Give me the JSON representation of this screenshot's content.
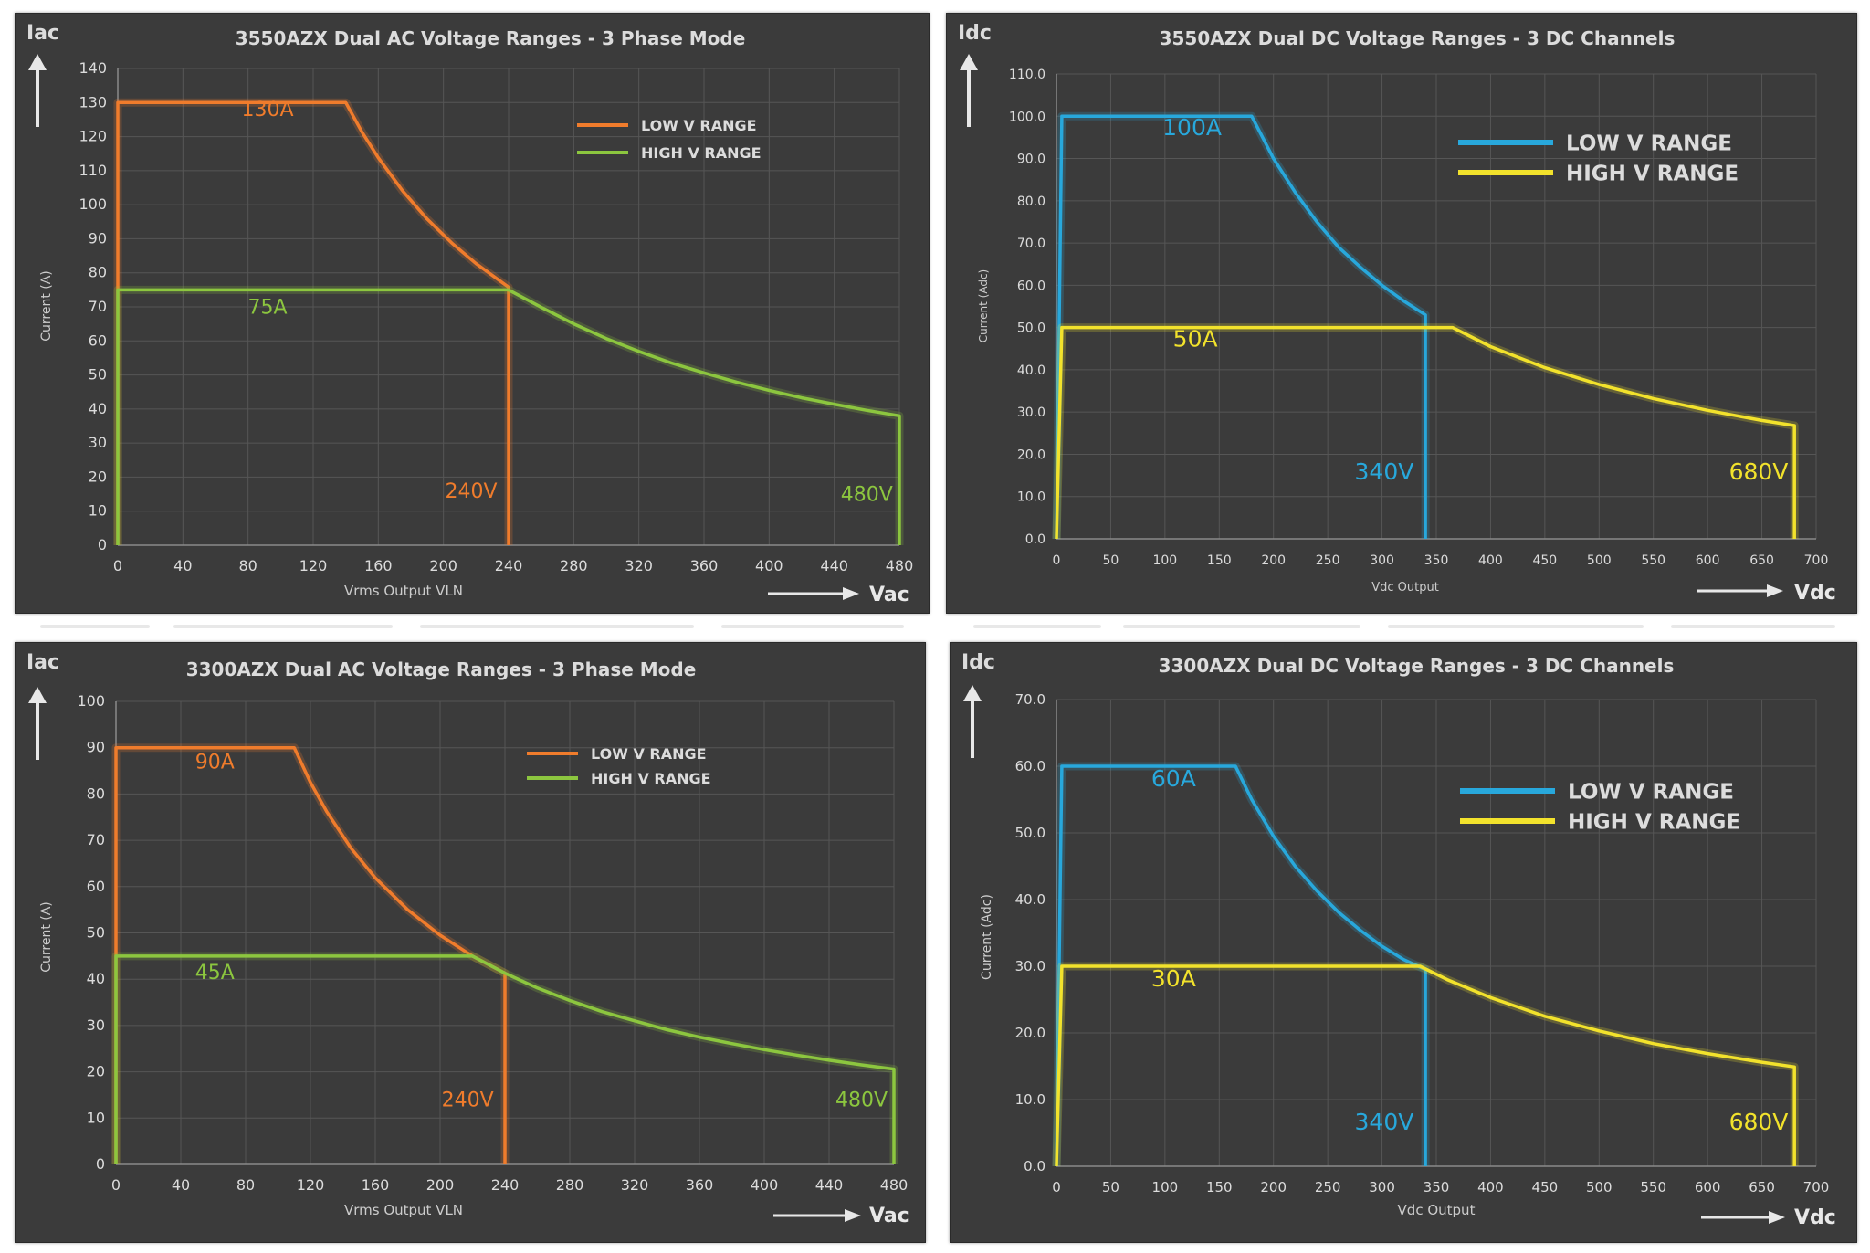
{
  "colors": {
    "panel_bg": "#3b3b3b",
    "grid": "#565656",
    "text": "#dcdcdc",
    "orange": "#f07c2c",
    "green": "#8cc63f",
    "blue": "#28a8dc",
    "yellow": "#f2e22c"
  },
  "chart_data": [
    {
      "type": "line",
      "title": "3550AZX Dual AC Voltage Ranges - 3 Phase Mode",
      "corner_label": "Iac",
      "arrow_label": "Vac",
      "xlabel": "Vrms Output VLN",
      "ylabel": "Current (A)",
      "xlim": [
        0,
        480
      ],
      "ylim": [
        0,
        140
      ],
      "xticks": [
        "0",
        "40",
        "80",
        "120",
        "160",
        "200",
        "240",
        "280",
        "320",
        "360",
        "400",
        "440",
        "480"
      ],
      "yticks": [
        "0",
        "10",
        "20",
        "30",
        "40",
        "50",
        "60",
        "70",
        "80",
        "90",
        "100",
        "110",
        "120",
        "130",
        "140"
      ],
      "legend_position": "top-right",
      "series": [
        {
          "name": "LOW V RANGE",
          "color": "orange",
          "x": [
            0,
            0,
            140,
            150,
            160,
            175,
            190,
            205,
            220,
            240,
            240
          ],
          "y": [
            0,
            130,
            130,
            121.3,
            113.8,
            104,
            95.8,
            88.8,
            82.7,
            75.8,
            0
          ]
        },
        {
          "name": "HIGH V RANGE",
          "color": "green",
          "x": [
            0,
            0,
            240,
            260,
            280,
            300,
            320,
            340,
            360,
            380,
            400,
            420,
            440,
            460,
            480,
            480
          ],
          "y": [
            0,
            75,
            75,
            69.9,
            65,
            60.7,
            56.9,
            53.5,
            50.6,
            47.9,
            45.5,
            43.3,
            41.4,
            39.6,
            38,
            0
          ]
        }
      ],
      "annotations": [
        {
          "text": "130A",
          "x": 92,
          "y": 126,
          "color": "orange"
        },
        {
          "text": "75A",
          "x": 92,
          "y": 68,
          "color": "green"
        },
        {
          "text": "240V",
          "x": 217,
          "y": 14,
          "color": "orange"
        },
        {
          "text": "480V",
          "x": 460,
          "y": 13,
          "color": "green"
        }
      ]
    },
    {
      "type": "line",
      "title": "3550AZX Dual DC Voltage Ranges - 3 DC Channels",
      "corner_label": "Idc",
      "arrow_label": "Vdc",
      "xlabel": "Vdc Output",
      "ylabel": "Current (Adc)",
      "xlim": [
        0,
        700
      ],
      "ylim": [
        0,
        110
      ],
      "xticks": [
        "0",
        "50",
        "100",
        "150",
        "200",
        "250",
        "300",
        "350",
        "400",
        "450",
        "500",
        "550",
        "600",
        "650",
        "700"
      ],
      "yticks": [
        "0.0",
        "10.0",
        "20.0",
        "30.0",
        "40.0",
        "50.0",
        "60.0",
        "70.0",
        "80.0",
        "90.0",
        "100.0",
        "110.0"
      ],
      "legend_position": "top-right",
      "series": [
        {
          "name": "LOW V RANGE",
          "color": "blue",
          "x": [
            0,
            5,
            180,
            190,
            200,
            220,
            240,
            260,
            280,
            300,
            320,
            340,
            340
          ],
          "y": [
            0,
            100,
            100,
            95,
            90,
            82,
            75,
            69,
            64.3,
            60,
            56.3,
            53,
            0
          ]
        },
        {
          "name": "HIGH V RANGE",
          "color": "yellow",
          "x": [
            0,
            5,
            365,
            400,
            450,
            500,
            550,
            600,
            650,
            680,
            680
          ],
          "y": [
            0,
            50,
            50,
            45.5,
            40.5,
            36.5,
            33.2,
            30.4,
            28,
            26.8,
            0
          ]
        }
      ],
      "annotations": [
        {
          "text": "100A",
          "x": 125,
          "y": 95.5,
          "color": "blue"
        },
        {
          "text": "50A",
          "x": 128,
          "y": 45.5,
          "color": "yellow"
        },
        {
          "text": "340V",
          "x": 302,
          "y": 14,
          "color": "blue"
        },
        {
          "text": "680V",
          "x": 647,
          "y": 14,
          "color": "yellow"
        }
      ]
    },
    {
      "type": "line",
      "title": "3300AZX Dual AC Voltage Ranges - 3 Phase Mode",
      "corner_label": "Iac",
      "arrow_label": "Vac",
      "xlabel": "Vrms Output VLN",
      "ylabel": "Current (A)",
      "xlim": [
        0,
        480
      ],
      "ylim": [
        0,
        100
      ],
      "xticks": [
        "0",
        "40",
        "80",
        "120",
        "160",
        "200",
        "240",
        "280",
        "320",
        "360",
        "400",
        "440",
        "480"
      ],
      "yticks": [
        "0",
        "10",
        "20",
        "30",
        "40",
        "50",
        "60",
        "70",
        "80",
        "90",
        "100"
      ],
      "legend_position": "top-right",
      "series": [
        {
          "name": "LOW V RANGE",
          "color": "orange",
          "x": [
            0,
            0,
            110,
            120,
            130,
            145,
            160,
            180,
            200,
            220,
            240,
            240
          ],
          "y": [
            0,
            90,
            90,
            82.5,
            76.2,
            68.3,
            61.9,
            55,
            49.5,
            45,
            41.3,
            0
          ]
        },
        {
          "name": "HIGH V RANGE",
          "color": "green",
          "x": [
            0,
            0,
            220,
            240,
            260,
            280,
            300,
            320,
            340,
            360,
            380,
            400,
            420,
            440,
            460,
            480,
            480
          ],
          "y": [
            0,
            45,
            45,
            41.3,
            38.1,
            35.4,
            33,
            31,
            29.1,
            27.5,
            26.1,
            24.8,
            23.6,
            22.5,
            21.5,
            20.6,
            0
          ]
        }
      ],
      "annotations": [
        {
          "text": "90A",
          "x": 61,
          "y": 85.5,
          "color": "orange"
        },
        {
          "text": "45A",
          "x": 61,
          "y": 40,
          "color": "green"
        },
        {
          "text": "240V",
          "x": 217,
          "y": 12.5,
          "color": "orange"
        },
        {
          "text": "480V",
          "x": 460,
          "y": 12.5,
          "color": "green"
        }
      ]
    },
    {
      "type": "line",
      "title": "3300AZX Dual DC Voltage Ranges - 3 DC Channels",
      "corner_label": "Idc",
      "arrow_label": "Vdc",
      "xlabel": "Vdc Output",
      "ylabel": "Current (Adc)",
      "xlim": [
        0,
        700
      ],
      "ylim": [
        0,
        70
      ],
      "xticks": [
        "0",
        "50",
        "100",
        "150",
        "200",
        "250",
        "300",
        "350",
        "400",
        "450",
        "500",
        "550",
        "600",
        "650",
        "700"
      ],
      "yticks": [
        "0.0",
        "10.0",
        "20.0",
        "30.0",
        "40.0",
        "50.0",
        "60.0",
        "70.0"
      ],
      "legend_position": "top-right",
      "series": [
        {
          "name": "LOW V RANGE",
          "color": "blue",
          "x": [
            0,
            5,
            165,
            180,
            200,
            220,
            240,
            260,
            280,
            300,
            320,
            340,
            340
          ],
          "y": [
            0,
            60,
            60,
            55,
            49.5,
            45,
            41.3,
            38.1,
            35.4,
            33,
            31,
            29.5,
            0
          ]
        },
        {
          "name": "HIGH V RANGE",
          "color": "yellow",
          "x": [
            0,
            5,
            335,
            360,
            400,
            450,
            500,
            550,
            600,
            650,
            680,
            680
          ],
          "y": [
            0,
            30,
            30,
            28,
            25.3,
            22.5,
            20.3,
            18.4,
            16.9,
            15.6,
            14.9,
            0
          ]
        }
      ],
      "annotations": [
        {
          "text": "60A",
          "x": 108,
          "y": 57,
          "color": "blue"
        },
        {
          "text": "30A",
          "x": 108,
          "y": 27,
          "color": "yellow"
        },
        {
          "text": "340V",
          "x": 302,
          "y": 5.5,
          "color": "blue"
        },
        {
          "text": "680V",
          "x": 647,
          "y": 5.5,
          "color": "yellow"
        }
      ]
    }
  ]
}
